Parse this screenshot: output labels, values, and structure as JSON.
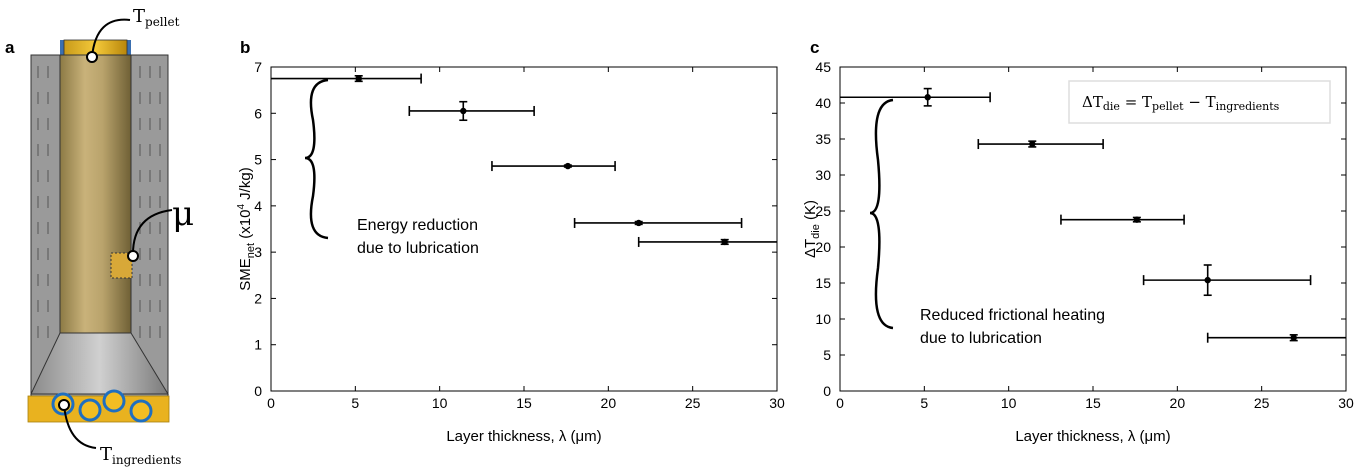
{
  "panels": {
    "a": {
      "letter": "a",
      "pellet_label": "T",
      "pellet_sub": "pellet",
      "mu_label": "μ",
      "ingredients_label": "T",
      "ingredients_sub": "ingredients"
    },
    "b": {
      "letter": "b",
      "annotation_line1": "Energy reduction",
      "annotation_line2": "due to lubrication"
    },
    "c": {
      "letter": "c",
      "annotation_line1": "Reduced frictional heating",
      "annotation_line2": "due to lubrication",
      "legend_text": "ΔT_die = T_pellet − T_ingredients"
    }
  },
  "chart_data": [
    {
      "type": "scatter",
      "panel": "b",
      "xlabel": "Layer thickness, λ (μm)",
      "ylabel": "SME_net (x10^4 J/kg)",
      "xlim": [
        0,
        30
      ],
      "ylim": [
        0,
        7
      ],
      "xticks": [
        0,
        5,
        10,
        15,
        20,
        25,
        30
      ],
      "yticks": [
        0,
        1,
        2,
        3,
        4,
        5,
        6,
        7
      ],
      "grid": false,
      "points": [
        {
          "x": 5.2,
          "y": 6.75,
          "xerr": [
            0,
            8.9
          ],
          "yerr": 0.06
        },
        {
          "x": 11.4,
          "y": 6.05,
          "xerr": [
            8.2,
            15.6
          ],
          "yerr": 0.2
        },
        {
          "x": 17.6,
          "y": 4.86,
          "xerr": [
            13.1,
            20.4
          ],
          "yerr": 0.02
        },
        {
          "x": 21.8,
          "y": 3.63,
          "xerr": [
            18.0,
            27.9
          ],
          "yerr": 0.03
        },
        {
          "x": 26.9,
          "y": 3.22,
          "xerr": [
            21.8,
            30.0
          ],
          "yerr": 0.05
        }
      ]
    },
    {
      "type": "scatter",
      "panel": "c",
      "xlabel": "Layer thickness, λ (μm)",
      "ylabel": "ΔT_die (K)",
      "xlim": [
        0,
        30
      ],
      "ylim": [
        0,
        45
      ],
      "xticks": [
        0,
        5,
        10,
        15,
        20,
        25,
        30
      ],
      "yticks": [
        0,
        5,
        10,
        15,
        20,
        25,
        30,
        35,
        40,
        45
      ],
      "grid": false,
      "points": [
        {
          "x": 5.2,
          "y": 40.8,
          "xerr": [
            0,
            8.9
          ],
          "yerr": 1.2
        },
        {
          "x": 11.4,
          "y": 34.3,
          "xerr": [
            8.2,
            15.6
          ],
          "yerr": 0.4
        },
        {
          "x": 17.6,
          "y": 23.8,
          "xerr": [
            13.1,
            20.4
          ],
          "yerr": 0.3
        },
        {
          "x": 21.8,
          "y": 15.4,
          "xerr": [
            18.0,
            27.9
          ],
          "yerr": 2.1
        },
        {
          "x": 26.9,
          "y": 7.4,
          "xerr": [
            21.8,
            30.0
          ],
          "yerr": 0.4
        }
      ]
    }
  ]
}
